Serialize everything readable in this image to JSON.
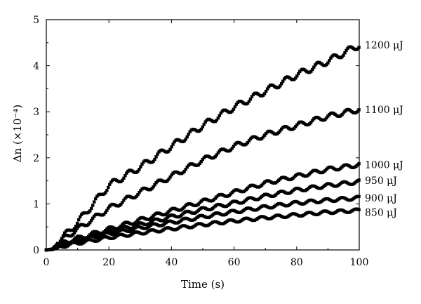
{
  "chart_data": {
    "type": "line",
    "title": "",
    "xlabel": "Time (s)",
    "ylabel": "Δn (×10⁻⁴)",
    "xlim": [
      0,
      100
    ],
    "ylim": [
      0,
      5
    ],
    "xticks": [
      0,
      20,
      40,
      60,
      80,
      100
    ],
    "yticks": [
      0,
      1,
      2,
      3,
      4,
      5
    ],
    "grid": false,
    "legend": "none",
    "series": [
      {
        "name": "1200 μJ",
        "x": [
          0,
          2,
          5,
          10,
          20,
          30,
          40,
          50,
          60,
          70,
          80,
          90,
          100
        ],
        "y": [
          0.0,
          0.02,
          0.25,
          0.6,
          1.4,
          1.8,
          2.25,
          2.7,
          3.1,
          3.45,
          3.8,
          4.1,
          4.45
        ]
      },
      {
        "name": "1100 μJ",
        "x": [
          0,
          2,
          5,
          10,
          20,
          30,
          40,
          50,
          60,
          70,
          80,
          90,
          100
        ],
        "y": [
          0.0,
          0.02,
          0.22,
          0.45,
          0.9,
          1.25,
          1.6,
          1.95,
          2.25,
          2.5,
          2.7,
          2.9,
          3.05
        ]
      },
      {
        "name": "1000 μJ",
        "x": [
          0,
          2,
          5,
          10,
          20,
          30,
          40,
          50,
          60,
          70,
          80,
          90,
          100
        ],
        "y": [
          0.0,
          0.01,
          0.15,
          0.25,
          0.45,
          0.65,
          0.85,
          1.05,
          1.25,
          1.45,
          1.6,
          1.75,
          1.85
        ]
      },
      {
        "name": "950 μJ",
        "x": [
          0,
          2,
          5,
          10,
          20,
          30,
          40,
          50,
          60,
          70,
          80,
          90,
          100
        ],
        "y": [
          0.0,
          0.01,
          0.12,
          0.22,
          0.4,
          0.55,
          0.72,
          0.88,
          1.02,
          1.17,
          1.3,
          1.4,
          1.48
        ]
      },
      {
        "name": "900 μJ",
        "x": [
          0,
          2,
          5,
          10,
          20,
          30,
          40,
          50,
          60,
          70,
          80,
          90,
          100
        ],
        "y": [
          0.0,
          0.01,
          0.1,
          0.2,
          0.35,
          0.48,
          0.6,
          0.72,
          0.83,
          0.93,
          1.02,
          1.08,
          1.13
        ]
      },
      {
        "name": "850 μJ",
        "x": [
          0,
          2,
          5,
          10,
          20,
          30,
          40,
          50,
          60,
          70,
          80,
          90,
          100
        ],
        "y": [
          0.0,
          0.01,
          0.08,
          0.15,
          0.27,
          0.37,
          0.46,
          0.55,
          0.63,
          0.7,
          0.76,
          0.82,
          0.86
        ]
      }
    ]
  }
}
